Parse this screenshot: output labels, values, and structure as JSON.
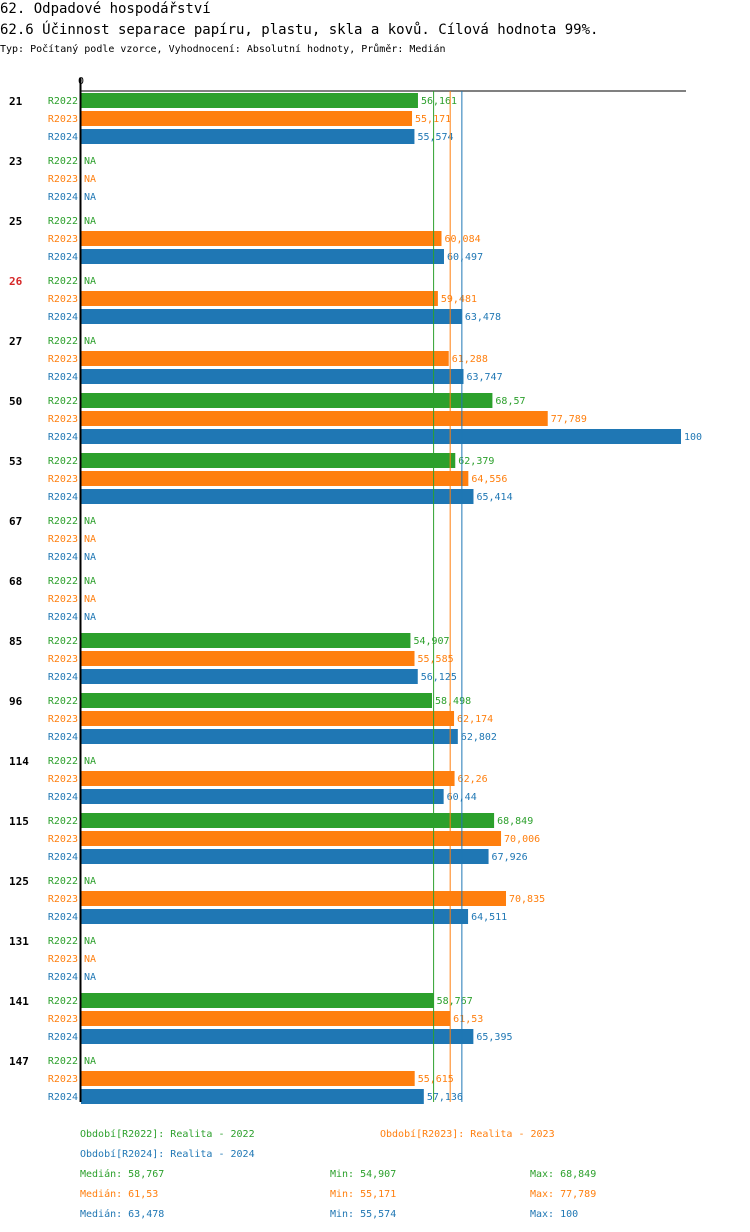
{
  "header": {
    "title": "62. Odpadové hospodářství",
    "subtitle": "62.6 Účinnost separace papíru, plastu, skla a kovů. Cílová hodnota 99%.",
    "meta": "Typ: Počítaný podle vzorce, Vyhodnocení: Absolutní hodnoty, Průměr: Medián"
  },
  "chart_data": {
    "type": "bar",
    "orientation": "horizontal",
    "title": "62.6 Účinnost separace papíru, plastu, skla a kovů. Cílová hodnota 99%.",
    "axis_zero_label": "0",
    "xlim": [
      0,
      100
    ],
    "na_label": "NA",
    "highlight_category": "26",
    "categories": [
      "21",
      "23",
      "25",
      "26",
      "27",
      "50",
      "53",
      "67",
      "68",
      "85",
      "96",
      "114",
      "115",
      "125",
      "131",
      "141",
      "147"
    ],
    "series": [
      {
        "name": "R2022",
        "color": "#2ca02c",
        "values": [
          56.161,
          null,
          null,
          null,
          null,
          68.57,
          62.379,
          null,
          null,
          54.907,
          58.498,
          null,
          68.849,
          null,
          null,
          58.767,
          null
        ],
        "labels": [
          "56,161",
          "NA",
          "NA",
          "NA",
          "NA",
          "68,57",
          "62,379",
          "NA",
          "NA",
          "54,907",
          "58,498",
          "NA",
          "68,849",
          "NA",
          "NA",
          "58,767",
          "NA"
        ]
      },
      {
        "name": "R2023",
        "color": "#ff7f0e",
        "values": [
          55.171,
          null,
          60.084,
          59.481,
          61.288,
          77.789,
          64.556,
          null,
          null,
          55.585,
          62.174,
          62.26,
          70.006,
          70.835,
          null,
          61.53,
          55.615
        ],
        "labels": [
          "55,171",
          "NA",
          "60,084",
          "59,481",
          "61,288",
          "77,789",
          "64,556",
          "NA",
          "NA",
          "55,585",
          "62,174",
          "62,26",
          "70,006",
          "70,835",
          "NA",
          "61,53",
          "55,615"
        ]
      },
      {
        "name": "R2024",
        "color": "#1f77b4",
        "values": [
          55.574,
          null,
          60.497,
          63.478,
          63.747,
          100,
          65.414,
          null,
          null,
          56.125,
          62.802,
          60.44,
          67.926,
          64.511,
          null,
          65.395,
          57.136
        ],
        "labels": [
          "55,574",
          "NA",
          "60,497",
          "63,478",
          "63,747",
          "100",
          "65,414",
          "NA",
          "NA",
          "56,125",
          "62,802",
          "60,44",
          "67,926",
          "64,511",
          "NA",
          "65,395",
          "57,136"
        ]
      }
    ],
    "reference_lines": [
      {
        "series": "R2022",
        "value": 58.767,
        "color": "#2ca02c"
      },
      {
        "series": "R2023",
        "value": 61.53,
        "color": "#ff7f0e"
      },
      {
        "series": "R2024",
        "value": 63.478,
        "color": "#1f77b4"
      }
    ]
  },
  "legend": {
    "periods": [
      {
        "text": "Období[R2022]: Realita - 2022",
        "color": "#2ca02c"
      },
      {
        "text": "Období[R2023]: Realita - 2023",
        "color": "#ff7f0e"
      },
      {
        "text": "Období[R2024]: Realita - 2024",
        "color": "#1f77b4"
      }
    ],
    "stats": [
      {
        "median": "Medián: 58,767",
        "min": "Min: 54,907",
        "max": "Max: 68,849",
        "color": "#2ca02c"
      },
      {
        "median": "Medián: 61,53",
        "min": "Min: 55,171",
        "max": "Max: 77,789",
        "color": "#ff7f0e"
      },
      {
        "median": "Medián: 63,478",
        "min": "Min: 55,574",
        "max": "Max: 100",
        "color": "#1f77b4"
      }
    ]
  }
}
